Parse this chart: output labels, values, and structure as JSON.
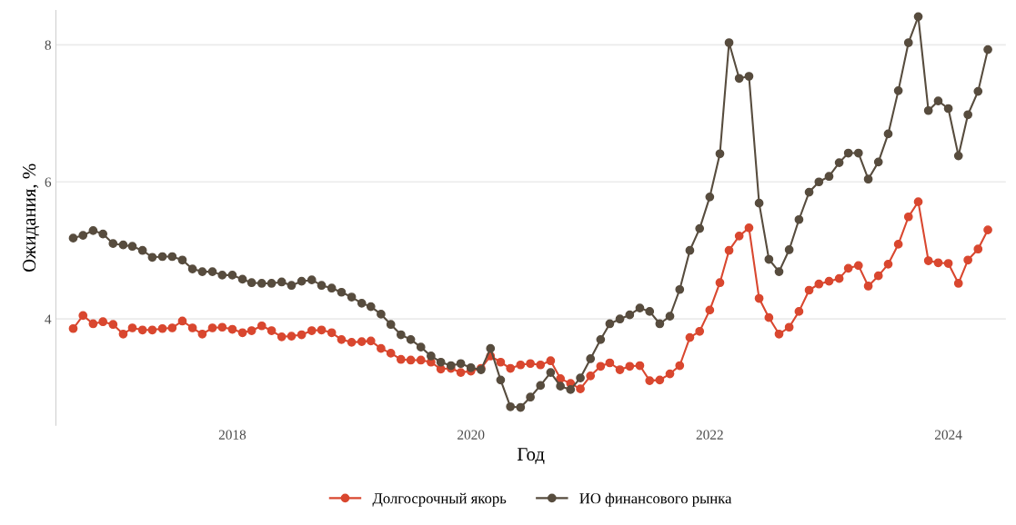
{
  "chart_data": {
    "type": "line",
    "xlabel": "Год",
    "ylabel": "Ожидания, %",
    "x": [
      "2016-09",
      "2016-10",
      "2016-11",
      "2016-12",
      "2017-01",
      "2017-02",
      "2017-03",
      "2017-04",
      "2017-05",
      "2017-06",
      "2017-07",
      "2017-08",
      "2017-09",
      "2017-10",
      "2017-11",
      "2017-12",
      "2018-01",
      "2018-02",
      "2018-03",
      "2018-04",
      "2018-05",
      "2018-06",
      "2018-07",
      "2018-08",
      "2018-09",
      "2018-10",
      "2018-11",
      "2018-12",
      "2019-01",
      "2019-02",
      "2019-03",
      "2019-04",
      "2019-05",
      "2019-06",
      "2019-07",
      "2019-08",
      "2019-09",
      "2019-10",
      "2019-11",
      "2019-12",
      "2020-01",
      "2020-02",
      "2020-03",
      "2020-04",
      "2020-05",
      "2020-06",
      "2020-07",
      "2020-08",
      "2020-09",
      "2020-10",
      "2020-11",
      "2020-12",
      "2021-01",
      "2021-02",
      "2021-03",
      "2021-04",
      "2021-05",
      "2021-06",
      "2021-07",
      "2021-08",
      "2021-09",
      "2021-10",
      "2021-11",
      "2021-12",
      "2022-01",
      "2022-02",
      "2022-03",
      "2022-04",
      "2022-05",
      "2022-06",
      "2022-07",
      "2022-08",
      "2022-09",
      "2022-10",
      "2022-11",
      "2022-12",
      "2023-01",
      "2023-02",
      "2023-03",
      "2023-04",
      "2023-05",
      "2023-06",
      "2023-07",
      "2023-08",
      "2023-09",
      "2023-10",
      "2023-11",
      "2023-12",
      "2024-01",
      "2024-02",
      "2024-03",
      "2024-04",
      "2024-05"
    ],
    "series": [
      {
        "name": "Долгосрочный якорь",
        "color": "#d9472f",
        "values": [
          3.86,
          4.05,
          3.93,
          3.96,
          3.92,
          3.78,
          3.87,
          3.84,
          3.84,
          3.86,
          3.87,
          3.97,
          3.87,
          3.78,
          3.87,
          3.88,
          3.85,
          3.8,
          3.83,
          3.9,
          3.83,
          3.74,
          3.75,
          3.77,
          3.83,
          3.84,
          3.8,
          3.7,
          3.66,
          3.67,
          3.68,
          3.57,
          3.5,
          3.41,
          3.4,
          3.4,
          3.37,
          3.27,
          3.28,
          3.22,
          3.24,
          3.28,
          3.46,
          3.37,
          3.28,
          3.33,
          3.35,
          3.33,
          3.39,
          3.13,
          3.06,
          2.98,
          3.17,
          3.31,
          3.36,
          3.26,
          3.31,
          3.32,
          3.1,
          3.11,
          3.2,
          3.32,
          3.73,
          3.82,
          4.13,
          4.53,
          5.0,
          5.21,
          5.33,
          4.3,
          4.02,
          3.78,
          3.88,
          4.11,
          4.42,
          4.51,
          4.55,
          4.59,
          4.74,
          4.78,
          4.48,
          4.63,
          4.8,
          5.09,
          5.49,
          5.71,
          4.85,
          4.82,
          4.81,
          4.52,
          4.86,
          5.02,
          5.3
        ]
      },
      {
        "name": "ИО финансового рынка",
        "color": "#574c3e",
        "values": [
          5.18,
          5.22,
          5.29,
          5.24,
          5.1,
          5.08,
          5.06,
          5.0,
          4.9,
          4.91,
          4.91,
          4.86,
          4.73,
          4.69,
          4.69,
          4.64,
          4.64,
          4.58,
          4.53,
          4.52,
          4.52,
          4.54,
          4.49,
          4.55,
          4.57,
          4.49,
          4.45,
          4.39,
          4.32,
          4.23,
          4.18,
          4.07,
          3.92,
          3.77,
          3.7,
          3.59,
          3.46,
          3.37,
          3.32,
          3.35,
          3.29,
          3.26,
          3.57,
          3.11,
          2.72,
          2.71,
          2.86,
          3.03,
          3.22,
          3.02,
          2.97,
          3.14,
          3.42,
          3.7,
          3.93,
          4.0,
          4.06,
          4.16,
          4.11,
          3.93,
          4.04,
          4.43,
          5.0,
          5.32,
          5.78,
          6.41,
          8.03,
          7.51,
          7.54,
          5.69,
          4.87,
          4.69,
          5.01,
          5.45,
          5.85,
          6.0,
          6.08,
          6.28,
          6.42,
          6.42,
          6.04,
          6.29,
          6.7,
          7.33,
          8.03,
          8.41,
          7.04,
          7.18,
          7.07,
          6.38,
          6.98,
          7.32,
          7.93
        ]
      }
    ],
    "xlim": [
      "2016-07-10",
      "2024-06-25"
    ],
    "xticks": [
      {
        "value": "2018-01-01",
        "label": "2018"
      },
      {
        "value": "2020-01-01",
        "label": "2020"
      },
      {
        "value": "2022-01-01",
        "label": "2022"
      },
      {
        "value": "2024-01-01",
        "label": "2024"
      }
    ],
    "ylim": [
      2.45,
      8.5
    ],
    "yticks": [
      4,
      6,
      8
    ],
    "grid": "y",
    "legend": "bottom",
    "marker": "circle",
    "line_style": "solid"
  }
}
